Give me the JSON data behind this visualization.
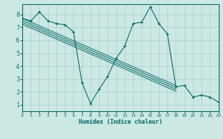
{
  "bg_color": "#cce8e2",
  "line_color": "#006666",
  "grid_color": "#aacccc",
  "xlabel": "Humidex (Indice chaleur)",
  "xlim": [
    0,
    23
  ],
  "ylim": [
    0.5,
    8.8
  ],
  "xticks": [
    0,
    1,
    2,
    3,
    4,
    5,
    6,
    7,
    8,
    9,
    10,
    11,
    12,
    13,
    14,
    15,
    16,
    17,
    18,
    19,
    20,
    21,
    22,
    23
  ],
  "yticks": [
    1,
    2,
    3,
    4,
    5,
    6,
    7,
    8
  ],
  "main_x": [
    0,
    1,
    2,
    3,
    4,
    5,
    6,
    7,
    8,
    9,
    10,
    11,
    12,
    13,
    14,
    15,
    16,
    17,
    18,
    19,
    20,
    21,
    22,
    23
  ],
  "main_y": [
    7.7,
    7.5,
    8.2,
    7.5,
    7.3,
    7.2,
    6.65,
    2.7,
    1.1,
    2.2,
    3.2,
    4.6,
    5.55,
    7.3,
    7.4,
    8.6,
    7.3,
    6.5,
    2.4,
    2.5,
    1.6,
    1.75,
    1.6,
    1.2
  ],
  "reg_lines": [
    [
      [
        0,
        18
      ],
      [
        7.7,
        2.5
      ]
    ],
    [
      [
        0,
        18
      ],
      [
        7.55,
        2.35
      ]
    ],
    [
      [
        0,
        18
      ],
      [
        7.4,
        2.2
      ]
    ],
    [
      [
        0,
        18
      ],
      [
        7.25,
        2.05
      ]
    ]
  ]
}
